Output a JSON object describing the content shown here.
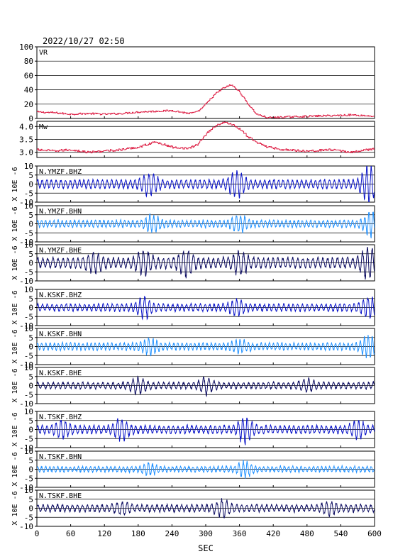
{
  "header": {
    "timestamp": "2022/10/27 02:50"
  },
  "chart_data": {
    "type": "line",
    "xlabel": "SEC",
    "xlim": [
      0,
      600
    ],
    "x_ticks": [
      "0",
      "60",
      "120",
      "180",
      "240",
      "300",
      "360",
      "420",
      "480",
      "540",
      "600"
    ],
    "grid": true,
    "colors": {
      "vr_mw_line": "#dc143c",
      "z_trace": "#0a14c8",
      "n_trace": "#1e90ff",
      "e_trace": "#0a0a60",
      "frame": "#000000"
    },
    "panels": [
      {
        "id": "vr",
        "name": "VR",
        "ylim": [
          0,
          100
        ],
        "y_ticks": [
          "0",
          "20",
          "40",
          "60",
          "80",
          "100"
        ],
        "series": {
          "x": [
            0,
            30,
            60,
            90,
            120,
            150,
            180,
            210,
            240,
            270,
            285,
            300,
            315,
            330,
            345,
            360,
            375,
            390,
            410,
            440,
            480,
            520,
            560,
            600
          ],
          "y": [
            9,
            8,
            6,
            7,
            6,
            7,
            9,
            10,
            11,
            7,
            9,
            20,
            33,
            42,
            47,
            37,
            20,
            6,
            1,
            2,
            3,
            4,
            5,
            3
          ]
        }
      },
      {
        "id": "mw",
        "name": "Mw",
        "ylim": [
          2.8,
          4.2
        ],
        "y_ticks": [
          "3.0",
          "3.5",
          "4.0"
        ],
        "series": {
          "x": [
            0,
            30,
            60,
            90,
            120,
            150,
            180,
            210,
            240,
            270,
            285,
            300,
            315,
            330,
            345,
            360,
            375,
            390,
            410,
            440,
            480,
            520,
            560,
            600
          ],
          "y": [
            3.1,
            3.05,
            3.1,
            3.0,
            3.05,
            3.1,
            3.2,
            3.4,
            3.2,
            3.15,
            3.3,
            3.7,
            4.0,
            4.15,
            4.1,
            3.9,
            3.6,
            3.4,
            3.2,
            3.1,
            3.05,
            3.1,
            3.0,
            3.15
          ]
        }
      },
      {
        "id": "ymzf-bhz",
        "name": "N.YMZF.BHZ",
        "component": "Z",
        "ylim": [
          -10,
          10
        ],
        "y_ticks": [
          "-10",
          "-5",
          "0",
          "5",
          "10"
        ],
        "ylabel": "X 10E -6",
        "events": [
          [
            200,
            4
          ],
          [
            355,
            5
          ],
          [
            590,
            8
          ]
        ],
        "base": 2.2
      },
      {
        "id": "ymzf-bhn",
        "name": "N.YMZF.BHN",
        "component": "N",
        "ylim": [
          -10,
          10
        ],
        "y_ticks": [
          "-10",
          "-5",
          "0",
          "5",
          "10"
        ],
        "ylabel": "X 10E -6",
        "events": [
          [
            205,
            3
          ],
          [
            360,
            3
          ],
          [
            595,
            5
          ]
        ],
        "base": 1.8
      },
      {
        "id": "ymzf-bhe",
        "name": "N.YMZF.BHE",
        "component": "E",
        "ylim": [
          -10,
          10
        ],
        "y_ticks": [
          "-10",
          "-5",
          "0",
          "5",
          "10"
        ],
        "ylabel": "X 10E -6",
        "events": [
          [
            100,
            3
          ],
          [
            190,
            4
          ],
          [
            265,
            5
          ],
          [
            360,
            4
          ],
          [
            590,
            7
          ]
        ],
        "base": 2.6
      },
      {
        "id": "kskf-bhz",
        "name": "N.KSKF.BHZ",
        "component": "Z",
        "ylim": [
          -10,
          10
        ],
        "y_ticks": [
          "-10",
          "-5",
          "0",
          "5",
          "10"
        ],
        "ylabel": "X 10E -6",
        "events": [
          [
            190,
            4
          ],
          [
            355,
            3
          ],
          [
            590,
            4
          ]
        ],
        "base": 1.8
      },
      {
        "id": "kskf-bhn",
        "name": "N.KSKF.BHN",
        "component": "N",
        "ylim": [
          -10,
          10
        ],
        "y_ticks": [
          "-10",
          "-5",
          "0",
          "5",
          "10"
        ],
        "ylabel": "X 10E -6",
        "events": [
          [
            200,
            3
          ],
          [
            360,
            2
          ],
          [
            590,
            4
          ]
        ],
        "base": 1.8
      },
      {
        "id": "kskf-bhe",
        "name": "N.KSKF.BHE",
        "component": "E",
        "ylim": [
          -10,
          10
        ],
        "y_ticks": [
          "-10",
          "-5",
          "0",
          "5",
          "10"
        ],
        "ylabel": "X 10E -6",
        "events": [
          [
            180,
            3
          ],
          [
            300,
            3
          ],
          [
            480,
            2
          ]
        ],
        "base": 1.6
      },
      {
        "id": "tskf-bhz",
        "name": "N.TSKF.BHZ",
        "component": "Z",
        "ylim": [
          -10,
          10
        ],
        "y_ticks": [
          "-10",
          "-5",
          "0",
          "5",
          "10"
        ],
        "ylabel": "X 10E -6",
        "events": [
          [
            45,
            3
          ],
          [
            150,
            4
          ],
          [
            370,
            5
          ],
          [
            570,
            3
          ]
        ],
        "base": 2.0
      },
      {
        "id": "tskf-bhn",
        "name": "N.TSKF.BHN",
        "component": "N",
        "ylim": [
          -10,
          10
        ],
        "y_ticks": [
          "-10",
          "-5",
          "0",
          "5",
          "10"
        ],
        "ylabel": "X 10E -6",
        "events": [
          [
            200,
            2
          ],
          [
            370,
            3
          ]
        ],
        "base": 1.4
      },
      {
        "id": "tskf-bhe",
        "name": "N.TSKF.BHE",
        "component": "E",
        "ylim": [
          -10,
          10
        ],
        "y_ticks": [
          "-10",
          "-5",
          "0",
          "5",
          "10"
        ],
        "ylabel": "X 10E -6",
        "events": [
          [
            150,
            2
          ],
          [
            330,
            3
          ],
          [
            520,
            2
          ]
        ],
        "base": 1.8
      }
    ]
  }
}
